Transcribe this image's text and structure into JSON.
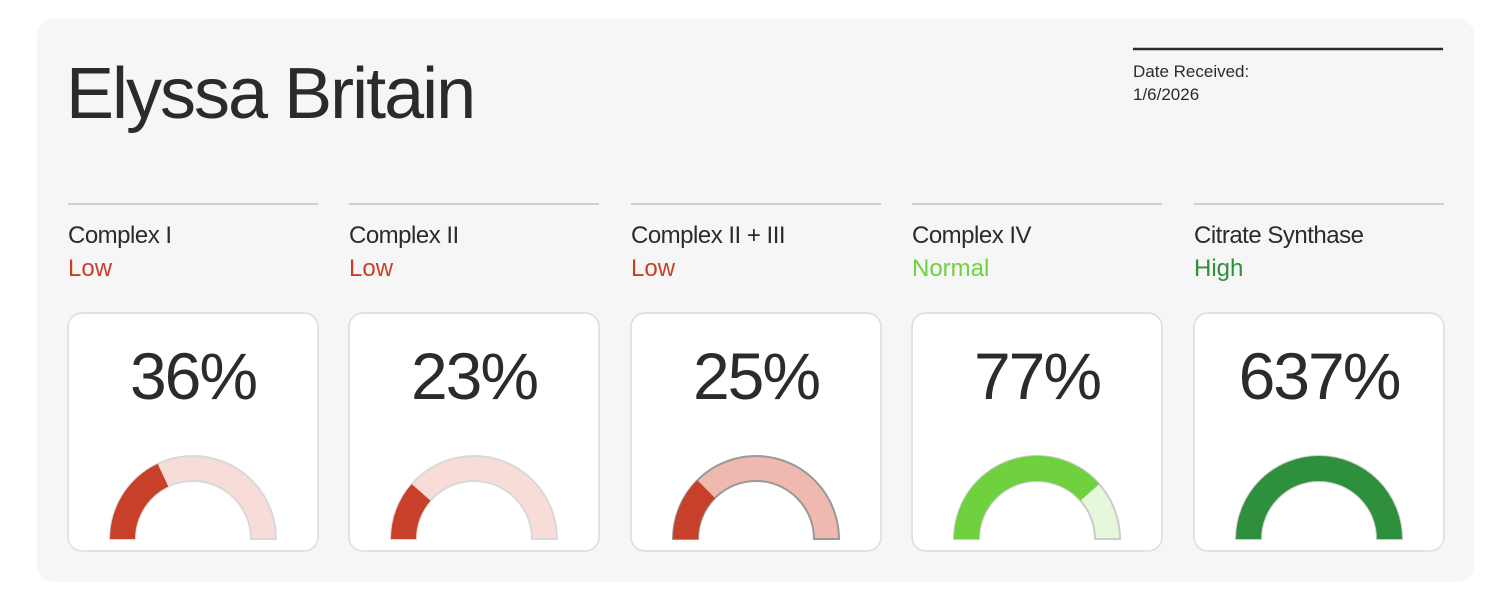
{
  "header": {
    "name": "Elyssa Britain",
    "date_label": "Date Received:",
    "date": "1/6/2026"
  },
  "cards": [
    {
      "title": "Complex I",
      "status": "Low",
      "value": 36,
      "value_label": "36%",
      "color": "#c8402a",
      "track_color": "#f8dcd8",
      "track_stroke": "#d9d9d9"
    },
    {
      "title": "Complex II",
      "status": "Low",
      "value": 23,
      "value_label": "23%",
      "color": "#c8402a",
      "track_color": "#f8dcd8",
      "track_stroke": "#d9d9d9"
    },
    {
      "title": "Complex II + III",
      "status": "Low",
      "value": 25,
      "value_label": "25%",
      "color": "#c8402a",
      "track_color": "#efb9b0",
      "track_stroke": "#999999"
    },
    {
      "title": "Complex IV",
      "status": "Normal",
      "value": 77,
      "value_label": "77%",
      "color": "#6fd13d",
      "track_color": "#e6f7dc",
      "track_stroke": "#cccccc"
    },
    {
      "title": "Citrate Synthase",
      "status": "High",
      "value": 637,
      "value_label": "637%",
      "color": "#2e8f3c",
      "track_color": "#e0f0e0",
      "track_stroke": "#cccccc"
    }
  ]
}
